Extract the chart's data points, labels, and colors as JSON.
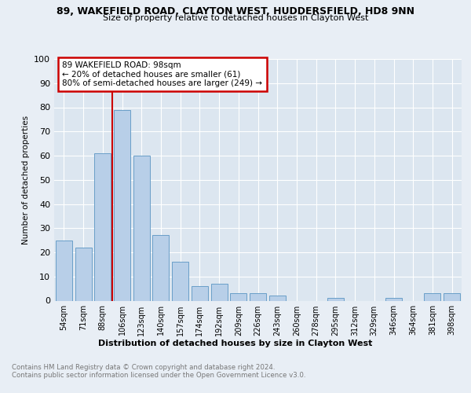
{
  "title1": "89, WAKEFIELD ROAD, CLAYTON WEST, HUDDERSFIELD, HD8 9NN",
  "title2": "Size of property relative to detached houses in Clayton West",
  "xlabel": "Distribution of detached houses by size in Clayton West",
  "ylabel": "Number of detached properties",
  "categories": [
    "54sqm",
    "71sqm",
    "88sqm",
    "106sqm",
    "123sqm",
    "140sqm",
    "157sqm",
    "174sqm",
    "192sqm",
    "209sqm",
    "226sqm",
    "243sqm",
    "260sqm",
    "278sqm",
    "295sqm",
    "312sqm",
    "329sqm",
    "346sqm",
    "364sqm",
    "381sqm",
    "398sqm"
  ],
  "values": [
    25,
    22,
    61,
    79,
    60,
    27,
    16,
    6,
    7,
    3,
    3,
    2,
    0,
    0,
    1,
    0,
    0,
    1,
    0,
    3,
    3
  ],
  "bar_color": "#b8cfe8",
  "bar_edge_color": "#6a9fc8",
  "vline_color": "#cc0000",
  "annotation_text": "89 WAKEFIELD ROAD: 98sqm\n← 20% of detached houses are smaller (61)\n80% of semi-detached houses are larger (249) →",
  "annotation_box_color": "#cc0000",
  "ylim": [
    0,
    100
  ],
  "yticks": [
    0,
    10,
    20,
    30,
    40,
    50,
    60,
    70,
    80,
    90,
    100
  ],
  "footer": "Contains HM Land Registry data © Crown copyright and database right 2024.\nContains public sector information licensed under the Open Government Licence v3.0.",
  "bg_color": "#e8eef5",
  "plot_bg_color": "#dce6f0"
}
